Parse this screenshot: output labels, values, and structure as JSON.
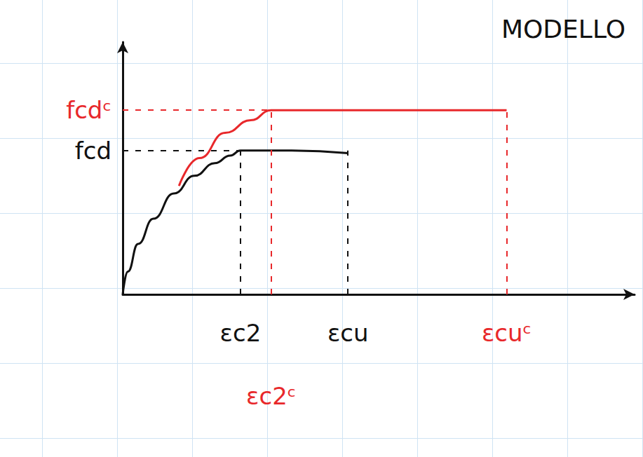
{
  "chart_data": {
    "type": "line",
    "title": "MODELLO",
    "xlim": [
      0,
      10
    ],
    "ylim": [
      0,
      10
    ],
    "xticks": [],
    "yticks": [],
    "tick_labels": false,
    "series": [
      {
        "color": "#111111",
        "line_style": "solid",
        "x": [
          0,
          0.1,
          0.3,
          0.6,
          1.0,
          1.4,
          1.8,
          2.1,
          2.3,
          3.3,
          4.4
        ],
        "values": [
          0,
          0.9,
          2.0,
          3.0,
          4.0,
          4.7,
          5.2,
          5.5,
          5.7,
          5.7,
          5.6
        ],
        "marks": [
          {
            "text": "fcd",
            "axis": "y",
            "value": 5.7
          },
          {
            "text": "εc2",
            "axis": "x",
            "value": 2.3
          },
          {
            "text": "εcu",
            "axis": "x",
            "value": 4.4
          }
        ]
      },
      {
        "color": "#e8282b",
        "line_style": "solid",
        "x": [
          1.1,
          1.5,
          2.0,
          2.5,
          2.9,
          5.0,
          7.5
        ],
        "values": [
          4.3,
          5.4,
          6.4,
          6.9,
          7.3,
          7.3,
          7.3
        ],
        "marks": [
          {
            "text": "fcdᶜ",
            "axis": "y",
            "value": 7.3
          },
          {
            "text": "εc2ᶜ",
            "axis": "x",
            "value": 2.9
          },
          {
            "text": "εcuᶜ",
            "axis": "x",
            "value": 7.5
          }
        ]
      }
    ]
  }
}
